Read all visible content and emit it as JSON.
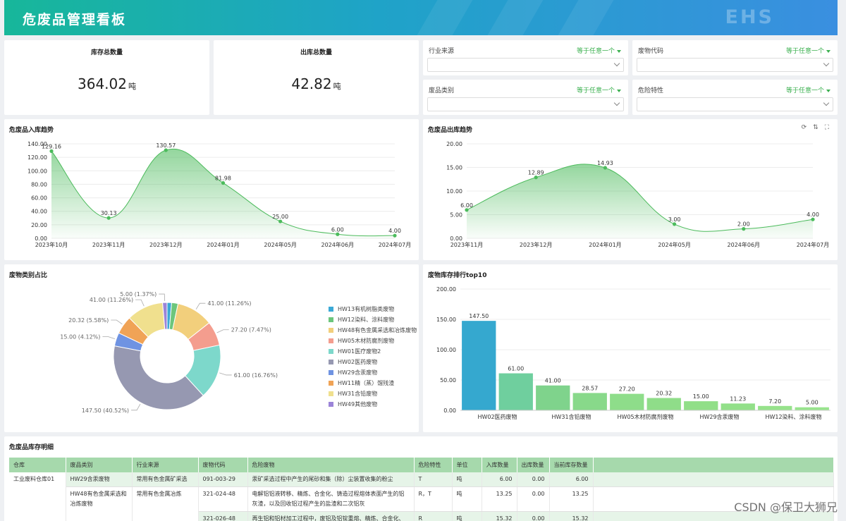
{
  "header": {
    "title": "危废品管理看板",
    "logo_text": "EHS"
  },
  "kpis": [
    {
      "label": "库存总数量",
      "value": "364.02",
      "unit": "吨"
    },
    {
      "label": "出库总数量",
      "value": "42.82",
      "unit": "吨"
    }
  ],
  "filters": [
    {
      "name": "行业来源",
      "op": "等于任意一个"
    },
    {
      "name": "废物代码",
      "op": "等于任意一个"
    },
    {
      "name": "废品类别",
      "op": "等于任意一个"
    },
    {
      "name": "危险特性",
      "op": "等于任意一个"
    }
  ],
  "panels": {
    "inbound_title": "危废品入库趋势",
    "outbound_title": "危废品出库趋势",
    "pie_title": "废物类别占比",
    "bar_title": "废物库存排行top10",
    "table_title": "危废品库存明细"
  },
  "tools": {
    "refresh": "⟳",
    "sort": "⇅",
    "fullscreen": "⛶"
  },
  "chart_data": [
    {
      "type": "area",
      "id": "inbound",
      "categories": [
        "2023年10月",
        "2023年11月",
        "2023年12月",
        "2024年01月",
        "2024年05月",
        "2024年06月",
        "2024年07月"
      ],
      "values": [
        129.16,
        30.13,
        130.57,
        81.98,
        25.0,
        6.0,
        4.0
      ],
      "yticks": [
        "0.00",
        "20.00",
        "40.00",
        "60.00",
        "80.00",
        "100.00",
        "120.00",
        "140.00"
      ],
      "ylim": [
        0,
        140
      ],
      "color": "#4cbb5c"
    },
    {
      "type": "area",
      "id": "outbound",
      "categories": [
        "2023年11月",
        "2023年12月",
        "2024年01月",
        "2024年05月",
        "2024年06月",
        "2024年07月"
      ],
      "values": [
        6.0,
        12.89,
        14.93,
        3.0,
        2.0,
        4.0
      ],
      "yticks": [
        "0.00",
        "5.00",
        "10.00",
        "15.00",
        "20.00"
      ],
      "ylim": [
        0,
        20
      ],
      "color": "#4cbb5c"
    },
    {
      "type": "pie",
      "id": "category-share",
      "slices": [
        {
          "name": "HW13有机树脂类废物",
          "value": 5.0,
          "label": "",
          "color": "#3ba9d6"
        },
        {
          "name": "HW12染料、涂料废物",
          "value": 7.2,
          "label": "",
          "color": "#6cc67c"
        },
        {
          "name": "HW48有色金属采选和冶炼废物",
          "value": 41.0,
          "label": "41.00 (11.26%)",
          "color": "#f2cf7c"
        },
        {
          "name": "HW05木材防腐剂废物",
          "value": 27.2,
          "label": "27.20 (7.47%)",
          "color": "#f49d8e"
        },
        {
          "name": "HW01医疗废物2",
          "value": 61.0,
          "label": "61.00 (16.76%)",
          "color": "#7dd8cb"
        },
        {
          "name": "HW02医药废物",
          "value": 147.5,
          "label": "147.50 (40.52%)",
          "color": "#9698b1"
        },
        {
          "name": "HW29含汞废物",
          "value": 15.0,
          "label": "15.00 (4.12%)",
          "color": "#6f93e2"
        },
        {
          "name": "HW11精（蒸）馏残渣",
          "value": 20.32,
          "label": "20.32 (5.58%)",
          "color": "#f0a356"
        },
        {
          "name": "HW31含铅废物",
          "value": 41.0,
          "label": "41.00 (11.26%)",
          "color": "#f0e08e"
        },
        {
          "name": "HW49其他废物",
          "value": 5.0,
          "label": "5.00 (1.37%)",
          "color": "#9b84d8"
        }
      ]
    },
    {
      "type": "bar",
      "id": "inventory-top10",
      "values": [
        147.5,
        61.0,
        41.0,
        28.57,
        27.2,
        20.32,
        15.0,
        11.23,
        7.2,
        5.0
      ],
      "value_labels": [
        "147.50",
        "61.00",
        "41.00",
        "28.57",
        "27.20",
        "20.32",
        "15.00",
        "11.23",
        "7.20",
        "5.00"
      ],
      "xtick_labels": [
        "HW02医药废物",
        "",
        "HW31含铅废物",
        "",
        "HW05木材防腐剂废物",
        "",
        "HW29含汞废物",
        "",
        "HW12染料、涂料废物",
        ""
      ],
      "colors": [
        "#35a8cf",
        "#6fcf9e",
        "#7fd38c",
        "#88d98a",
        "#8edd8a",
        "#8fdd89",
        "#91df88",
        "#92e089",
        "#96e28b",
        "#98e48d"
      ],
      "yticks": [
        "0.00",
        "50.00",
        "100.00",
        "150.00",
        "200.00"
      ],
      "ylim": [
        0,
        200
      ]
    }
  ],
  "table": {
    "columns": [
      "仓库",
      "废品类别",
      "行业来源",
      "废物代码",
      "危险废物",
      "危险特性",
      "单位",
      "入库数量",
      "出库数量",
      "当前库存数量"
    ],
    "rows": [
      [
        "工业废料仓库01",
        "HW29含汞废物",
        "常用有色金属矿采选",
        "091-003-29",
        "汞矿采选过程中产生的尾砂和集（除）尘装置收集的粉尘",
        "T",
        "吨",
        "6.00",
        "0.00",
        "6.00"
      ],
      [
        "",
        "HW48有色金属采选和冶炼废物",
        "常用有色金属冶炼",
        "321-024-48",
        "电解铝铝液转移、精炼、合金化、铸造过程熔体表面产生的铝灰渣，以及回收铝过程产生的盐渣和二次铝灰",
        "R，T",
        "吨",
        "13.25",
        "0.00",
        "13.25"
      ],
      [
        "",
        "",
        "",
        "321-026-48",
        "再生铝和铝材加工过程中，废铝及铝锭重熔、精炼、合金化、",
        "R",
        "吨",
        "15.32",
        "0.00",
        "15.32"
      ]
    ]
  },
  "watermark": "CSDN @保卫大狮兄"
}
